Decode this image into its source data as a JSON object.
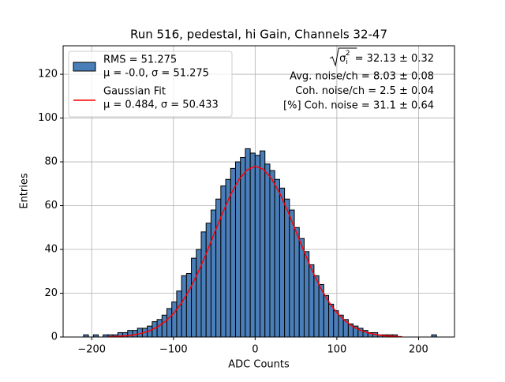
{
  "chart_data": {
    "type": "histogram",
    "title": "Run 516, pedestal, hi Gain, Channels 32-47",
    "x_label": "ADC Counts",
    "y_label": "Entries",
    "xlim": [
      -235,
      244
    ],
    "ylim": [
      0,
      133
    ],
    "xticks": [
      {
        "value": -200,
        "label": "−200"
      },
      {
        "value": -100,
        "label": "−100"
      },
      0,
      100,
      200
    ],
    "yticks": [
      0,
      20,
      40,
      60,
      80,
      100,
      120
    ],
    "grid": true,
    "legend": "upper left",
    "histogram": {
      "name": "RMS = 51.275",
      "label": "μ = -0.0, σ = 51.275",
      "color": "#4a7eb8",
      "edge_color": "#000000",
      "bins": [
        -210,
        -204,
        -198,
        -192,
        -186,
        -180,
        -174,
        -168,
        -162,
        -156,
        -150,
        -144,
        -138,
        -132,
        -126,
        -120,
        -114,
        -108,
        -102,
        -96,
        -90,
        -84,
        -78,
        -72,
        -66,
        -60,
        -54,
        -48,
        -42,
        -36,
        -30,
        -24,
        -18,
        -12,
        -6,
        0,
        6,
        12,
        18,
        24,
        30,
        36,
        42,
        48,
        54,
        60,
        66,
        72,
        78,
        84,
        90,
        96,
        102,
        108,
        114,
        120,
        126,
        132,
        138,
        144,
        150,
        156,
        162,
        168,
        174,
        180,
        186,
        192,
        198,
        204,
        210,
        216,
        222
      ],
      "values": [
        1,
        0,
        1,
        0,
        1,
        1,
        1,
        2,
        2,
        3,
        3,
        4,
        4,
        5,
        7,
        8,
        10,
        13,
        16,
        21,
        28,
        29,
        36,
        40,
        48,
        52,
        58,
        63,
        69,
        72,
        77,
        80,
        82,
        86,
        84,
        83,
        85,
        79,
        76,
        72,
        68,
        63,
        58,
        50,
        45,
        39,
        33,
        28,
        24,
        19,
        15,
        12,
        10,
        8,
        6,
        5,
        4,
        3,
        2,
        2,
        1,
        1,
        1,
        1,
        0,
        0,
        0,
        0,
        0,
        0,
        0,
        1
      ]
    },
    "fit": {
      "name": "Gaussian Fit",
      "label": "μ = 0.484, σ = 50.433",
      "color": "#ff0000",
      "x": [
        -180,
        -170,
        -160,
        -150,
        -140,
        -130,
        -120,
        -110,
        -100,
        -90,
        -80,
        -70,
        -60,
        -50,
        -40,
        -30,
        -20,
        -10,
        0,
        10,
        20,
        30,
        40,
        50,
        60,
        70,
        80,
        90,
        100,
        110,
        120,
        130,
        140,
        150,
        160,
        170,
        180
      ],
      "values": [
        0.13,
        0.26,
        0.49,
        0.9,
        1.6,
        2.7,
        4.5,
        7.1,
        10.7,
        15.6,
        21.8,
        29.4,
        38.0,
        47.3,
        56.5,
        65.0,
        71.8,
        76.3,
        78.0,
        76.6,
        72.4,
        65.7,
        57.4,
        48.2,
        38.9,
        30.2,
        22.5,
        16.1,
        11.1,
        7.4,
        4.7,
        2.9,
        1.7,
        1.0,
        0.5,
        0.3,
        0.1
      ]
    },
    "annotations": {
      "rms": {
        "symbol": "σ",
        "sub": "i",
        "sup": "2",
        "text": "= 32.13 ± 0.32"
      },
      "lines": [
        "Avg. noise/ch = 8.03 ± 0.08",
        "Coh. noise/ch = 2.5 ± 0.04",
        "[%] Coh. noise = 31.1 ± 0.64"
      ]
    }
  }
}
